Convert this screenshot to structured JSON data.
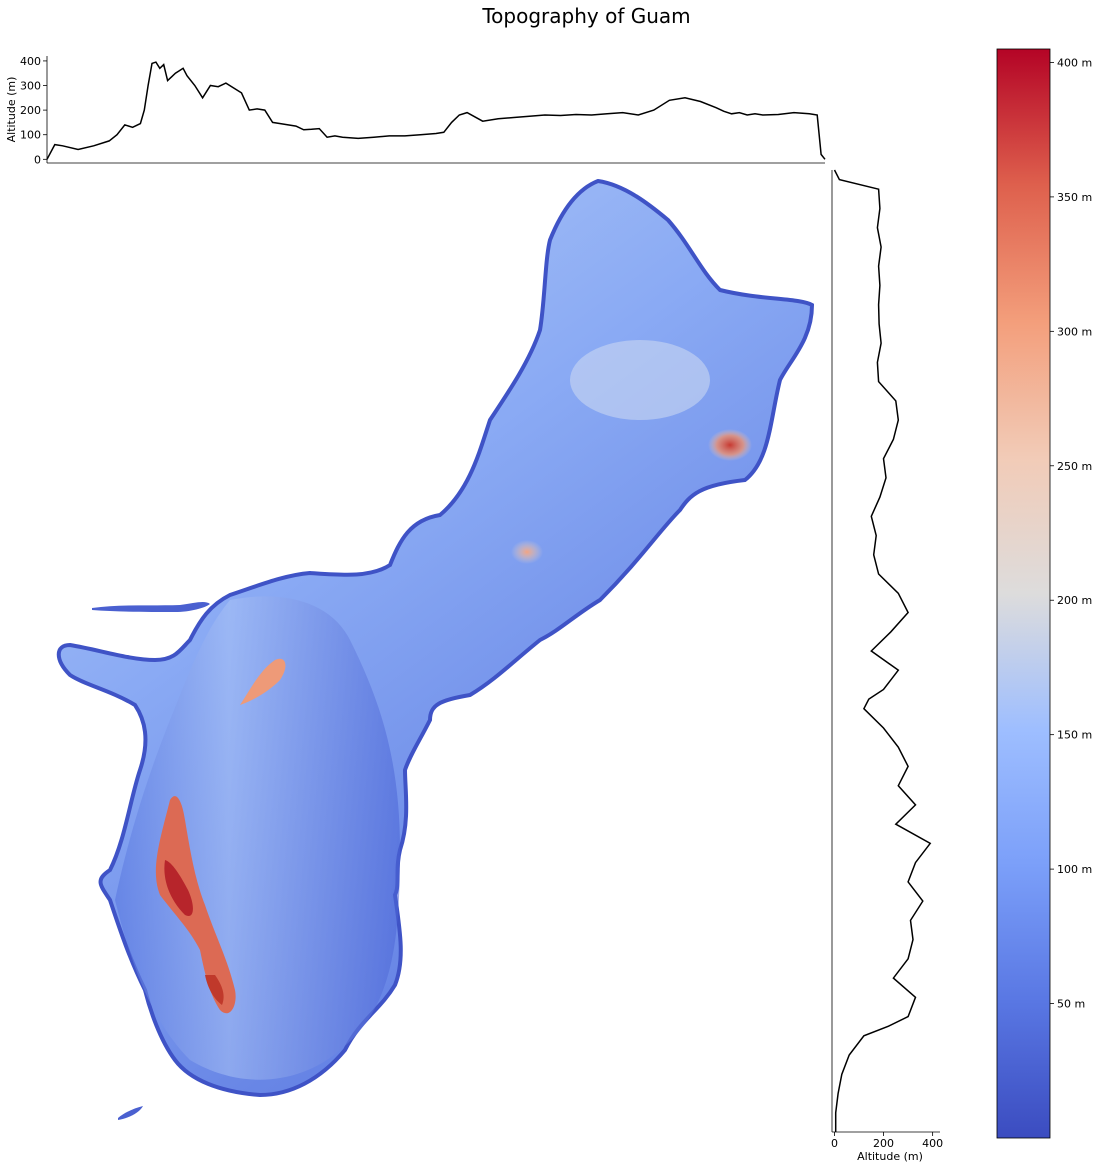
{
  "chart_data": [
    {
      "type": "line",
      "title": "Topography of Guam",
      "panel": "top-profile",
      "xlabel": "",
      "ylabel": "Altitude (m)",
      "ylim": [
        -15,
        420
      ],
      "yticks": [
        0,
        100,
        200,
        300,
        400
      ],
      "x": [
        0.0,
        0.01,
        0.02,
        0.04,
        0.06,
        0.08,
        0.09,
        0.1,
        0.11,
        0.12,
        0.125,
        0.13,
        0.135,
        0.14,
        0.145,
        0.15,
        0.155,
        0.16,
        0.165,
        0.17,
        0.175,
        0.18,
        0.19,
        0.2,
        0.21,
        0.22,
        0.23,
        0.24,
        0.25,
        0.26,
        0.27,
        0.28,
        0.29,
        0.3,
        0.31,
        0.32,
        0.33,
        0.34,
        0.35,
        0.36,
        0.37,
        0.38,
        0.4,
        0.42,
        0.44,
        0.46,
        0.48,
        0.5,
        0.51,
        0.52,
        0.53,
        0.54,
        0.56,
        0.58,
        0.6,
        0.62,
        0.64,
        0.66,
        0.68,
        0.7,
        0.72,
        0.74,
        0.76,
        0.78,
        0.8,
        0.82,
        0.84,
        0.86,
        0.87,
        0.88,
        0.89,
        0.9,
        0.91,
        0.92,
        0.94,
        0.96,
        0.98,
        0.99,
        0.995,
        1.0
      ],
      "y": [
        0,
        60,
        55,
        40,
        55,
        75,
        100,
        140,
        130,
        145,
        200,
        300,
        390,
        395,
        370,
        385,
        320,
        335,
        350,
        360,
        370,
        340,
        300,
        250,
        300,
        295,
        310,
        290,
        270,
        200,
        205,
        200,
        150,
        145,
        140,
        135,
        120,
        122,
        125,
        90,
        95,
        90,
        85,
        90,
        95,
        95,
        100,
        105,
        110,
        150,
        180,
        190,
        155,
        165,
        170,
        175,
        180,
        178,
        182,
        180,
        185,
        190,
        180,
        200,
        240,
        250,
        235,
        210,
        195,
        185,
        190,
        180,
        185,
        180,
        182,
        190,
        185,
        180,
        20,
        0
      ]
    },
    {
      "type": "line",
      "panel": "right-profile",
      "xlabel": "Altitude (m)",
      "ylabel": "",
      "xlim": [
        -10,
        430
      ],
      "xticks": [
        0,
        200,
        400
      ],
      "y_position": [
        0.0,
        0.01,
        0.02,
        0.04,
        0.06,
        0.08,
        0.1,
        0.12,
        0.14,
        0.16,
        0.18,
        0.2,
        0.22,
        0.24,
        0.26,
        0.28,
        0.3,
        0.32,
        0.34,
        0.36,
        0.38,
        0.4,
        0.42,
        0.44,
        0.46,
        0.48,
        0.5,
        0.52,
        0.54,
        0.55,
        0.56,
        0.58,
        0.6,
        0.62,
        0.64,
        0.66,
        0.68,
        0.7,
        0.72,
        0.74,
        0.76,
        0.78,
        0.8,
        0.82,
        0.84,
        0.86,
        0.88,
        0.89,
        0.9,
        0.92,
        0.94,
        0.96,
        0.98,
        1.0
      ],
      "altitude": [
        0,
        20,
        180,
        185,
        175,
        190,
        180,
        185,
        180,
        182,
        190,
        175,
        180,
        250,
        260,
        240,
        200,
        210,
        185,
        150,
        170,
        160,
        180,
        260,
        300,
        230,
        150,
        260,
        200,
        140,
        120,
        200,
        260,
        300,
        260,
        330,
        250,
        390,
        330,
        300,
        360,
        310,
        320,
        300,
        240,
        330,
        300,
        220,
        120,
        60,
        30,
        15,
        5,
        5
      ]
    },
    {
      "type": "heatmap",
      "panel": "map",
      "colormap": "coolwarm",
      "vmin": 0,
      "vmax": 405,
      "colorbar_ticks": [
        50,
        100,
        150,
        200,
        250,
        300,
        350,
        400
      ],
      "colorbar_tick_labels": [
        "50 m",
        "100 m",
        "150 m",
        "200 m",
        "250 m",
        "300 m",
        "350 m",
        "400 m"
      ]
    }
  ]
}
